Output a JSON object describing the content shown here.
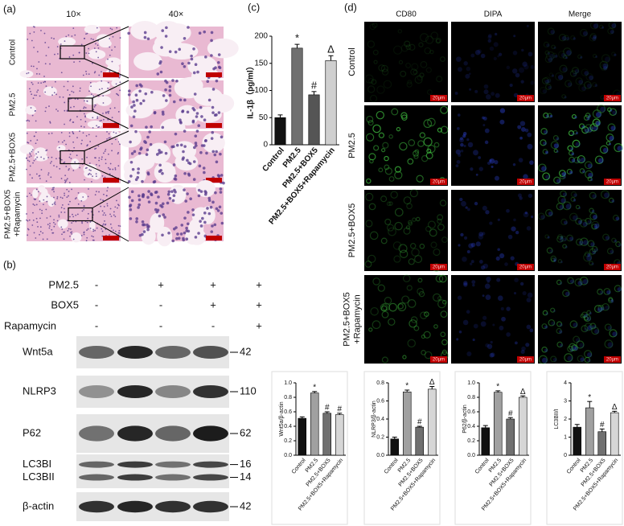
{
  "panels": {
    "a": {
      "label": "(a)",
      "columns": [
        "10×",
        "40×"
      ],
      "rows": [
        [
          "Control"
        ],
        [
          "PM2.5"
        ],
        [
          "PM2.5+BOX5"
        ],
        [
          "PM2.5+BOX5",
          "+Rapamycin"
        ]
      ]
    },
    "b": {
      "label": "(b)",
      "treatments": [
        {
          "name": "PM2.5",
          "signs": [
            "-",
            "+",
            "+",
            "+"
          ]
        },
        {
          "name": "BOX5",
          "signs": [
            "-",
            "-",
            "+",
            "+"
          ]
        },
        {
          "name": "Rapamycin",
          "signs": [
            "-",
            "-",
            "-",
            "+"
          ]
        }
      ],
      "blots": [
        {
          "names": [
            "Wnt5a"
          ],
          "kda": [
            42
          ]
        },
        {
          "names": [
            "NLRP3"
          ],
          "kda": [
            110
          ]
        },
        {
          "names": [
            "P62"
          ],
          "kda": [
            62
          ]
        },
        {
          "names": [
            "LC3BI",
            "LC3BII"
          ],
          "kda": [
            16,
            14
          ]
        },
        {
          "names": [
            "β-actin"
          ],
          "kda": [
            42
          ]
        }
      ]
    },
    "c": {
      "label": "(c)"
    },
    "d": {
      "label": "(d)",
      "columns": [
        "CD80",
        "DIPA",
        "Merge"
      ],
      "rows": [
        [
          "Control"
        ],
        [
          "PM2.5"
        ],
        [
          "PM2.5+BOX5"
        ],
        [
          "PM2.5+BOX5",
          "+Rapamycin"
        ]
      ],
      "scale_bar": "20μm"
    }
  },
  "chart_data": [
    {
      "type": "bar",
      "ylabel": "IL-1β（pg/ml）",
      "categories": [
        "Control",
        "PM2.5",
        "PM2.5+BOX5",
        "PM2.5+BOX5+Rapamycin"
      ],
      "values": [
        50,
        178,
        92,
        155
      ],
      "errors": [
        5,
        7,
        6,
        9
      ],
      "annotations": [
        null,
        "*",
        "#",
        "Δ"
      ],
      "colors": [
        "#111111",
        "#707070",
        "#555555",
        "#cfcfcf"
      ],
      "ylim": [
        0,
        200
      ],
      "yticks": [
        0,
        50,
        100,
        150,
        200
      ]
    },
    {
      "type": "bar",
      "ylabel": "Wnt5a/β-actin",
      "categories": [
        "Control",
        "PM2.5",
        "PM2.5+BOX5",
        "PM2.5+BOX5+Rapamycin"
      ],
      "values": [
        0.51,
        0.86,
        0.58,
        0.56
      ],
      "errors": [
        0.02,
        0.02,
        0.02,
        0.02
      ],
      "annotations": [
        null,
        "*",
        "#",
        "#"
      ],
      "colors": [
        "#111111",
        "#a0a0a0",
        "#707070",
        "#d6d6d6"
      ],
      "ylim": [
        0,
        1.0
      ],
      "yticks": [
        {
          "value": 0,
          "label": "0.0"
        },
        0.2,
        0.4,
        0.6,
        0.8,
        {
          "value": 1.0,
          "label": "1.0"
        }
      ]
    },
    {
      "type": "bar",
      "ylabel": "NLRP3/β-actin",
      "categories": [
        "Control",
        "PM2.5",
        "PM2.5+BOX5",
        "PM2.5+BOX5+Rapamycin"
      ],
      "values": [
        0.18,
        0.7,
        0.31,
        0.73
      ],
      "errors": [
        0.02,
        0.02,
        0.01,
        0.03
      ],
      "annotations": [
        null,
        "*",
        "#",
        "Δ"
      ],
      "colors": [
        "#111111",
        "#a0a0a0",
        "#707070",
        "#d6d6d6"
      ],
      "ylim": [
        0,
        0.8
      ],
      "yticks": [
        {
          "value": 0,
          "label": "0.0"
        },
        0.2,
        0.4,
        0.6,
        0.8
      ]
    },
    {
      "type": "bar",
      "ylabel": "P62/β-actin",
      "categories": [
        "Control",
        "PM2.5",
        "PM2.5+BOX5",
        "PM2.5+BOX5+Rapamycin"
      ],
      "values": [
        0.38,
        0.87,
        0.5,
        0.8
      ],
      "errors": [
        0.03,
        0.02,
        0.02,
        0.02
      ],
      "annotations": [
        null,
        "*",
        "#",
        "Δ"
      ],
      "colors": [
        "#111111",
        "#a0a0a0",
        "#707070",
        "#d6d6d6"
      ],
      "ylim": [
        0,
        1.0
      ],
      "yticks": [
        {
          "value": 0,
          "label": "0.0"
        },
        0.2,
        0.4,
        0.6,
        0.8,
        {
          "value": 1.0,
          "label": "1.0"
        }
      ]
    },
    {
      "type": "bar",
      "ylabel": "LC3BII/I",
      "categories": [
        "Control",
        "PM2.5",
        "PM2.5+BOX5",
        "PM2.5+BOX5+Rapamycin"
      ],
      "values": [
        1.55,
        2.62,
        1.3,
        2.35
      ],
      "errors": [
        0.15,
        0.35,
        0.15,
        0.08
      ],
      "annotations": [
        null,
        "*",
        "#",
        "Δ"
      ],
      "colors": [
        "#111111",
        "#a0a0a0",
        "#707070",
        "#d6d6d6"
      ],
      "ylim": [
        0,
        4
      ],
      "yticks": [
        0,
        1,
        2,
        3,
        4
      ]
    }
  ]
}
